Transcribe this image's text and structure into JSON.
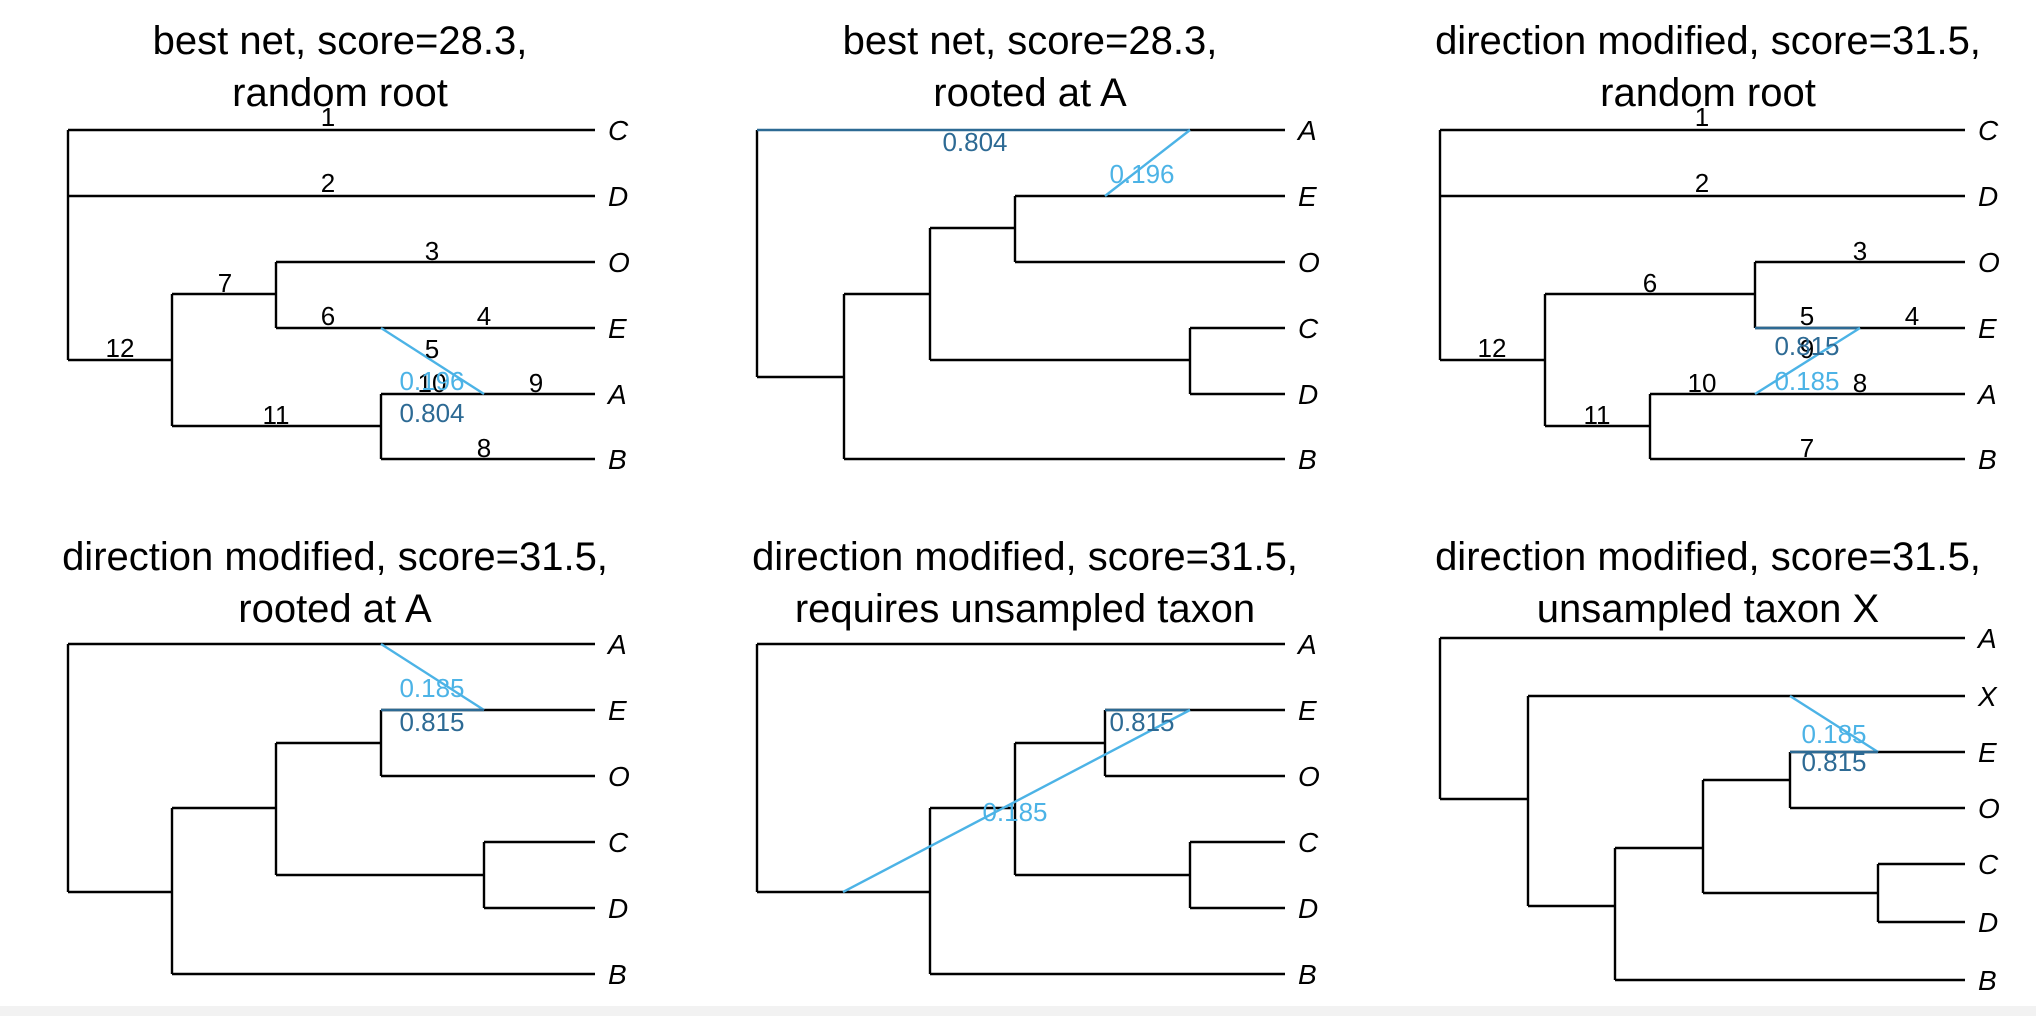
{
  "colors": {
    "minor": "#4cb3e6",
    "major": "#2d6a94",
    "tree": "#000000"
  },
  "panels": [
    {
      "title_line1": "best net, score=28.3,",
      "title_line2": "random root",
      "tips": [
        "C",
        "D",
        "O",
        "E",
        "A",
        "B"
      ],
      "edge_labels": [
        "1",
        "2",
        "3",
        "7",
        "6",
        "4",
        "12",
        "5",
        "10",
        "9",
        "11",
        "8"
      ],
      "gamma_labels": [
        {
          "text": "0.196",
          "tone": "minor"
        },
        {
          "text": "0.804",
          "tone": "major"
        }
      ]
    },
    {
      "title_line1": "best net, score=28.3,",
      "title_line2": "rooted at A",
      "tips": [
        "A",
        "E",
        "O",
        "C",
        "D",
        "B"
      ],
      "edge_labels": [],
      "gamma_labels": [
        {
          "text": "0.804",
          "tone": "major"
        },
        {
          "text": "0.196",
          "tone": "minor"
        }
      ]
    },
    {
      "title_line1": "direction modified, score=31.5,",
      "title_line2": "random root",
      "tips": [
        "C",
        "D",
        "O",
        "E",
        "A",
        "B"
      ],
      "edge_labels": [
        "1",
        "2",
        "3",
        "6",
        "5",
        "4",
        "12",
        "9",
        "10",
        "8",
        "11",
        "7"
      ],
      "gamma_labels": [
        {
          "text": "0.815",
          "tone": "major"
        },
        {
          "text": "0.185",
          "tone": "minor"
        }
      ]
    },
    {
      "title_line1": "direction modified, score=31.5,",
      "title_line2": "rooted at A",
      "tips": [
        "A",
        "E",
        "O",
        "C",
        "D",
        "B"
      ],
      "edge_labels": [],
      "gamma_labels": [
        {
          "text": "0.185",
          "tone": "minor"
        },
        {
          "text": "0.815",
          "tone": "major"
        }
      ]
    },
    {
      "title_line1": "direction modified, score=31.5,",
      "title_line2": "requires unsampled taxon",
      "tips": [
        "A",
        "E",
        "O",
        "C",
        "D",
        "B"
      ],
      "edge_labels": [],
      "gamma_labels": [
        {
          "text": "0.815",
          "tone": "major"
        },
        {
          "text": "0.185",
          "tone": "minor"
        }
      ]
    },
    {
      "title_line1": "direction modified, score=31.5,",
      "title_line2": "unsampled taxon X",
      "tips": [
        "A",
        "X",
        "E",
        "O",
        "C",
        "D",
        "B"
      ],
      "edge_labels": [],
      "gamma_labels": [
        {
          "text": "0.185",
          "tone": "minor"
        },
        {
          "text": "0.815",
          "tone": "major"
        }
      ]
    }
  ]
}
